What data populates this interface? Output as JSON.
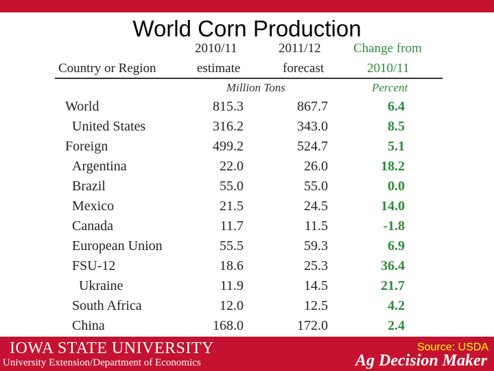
{
  "title": "World Corn Production",
  "table": {
    "header": {
      "country": "Country or Region",
      "col1_line1": "2010/11",
      "col1_line2": "estimate",
      "col2_line1": "2011/12",
      "col2_line2": "forecast",
      "col3_line1": "Change from",
      "col3_line2": "2010/11"
    },
    "units": {
      "tons": "Million Tons",
      "percent": "Percent"
    },
    "rows": [
      {
        "name": "World",
        "v1": "815.3",
        "v2": "867.7",
        "pct": "6.4"
      },
      {
        "name": "United States",
        "v1": "316.2",
        "v2": "343.0",
        "pct": "8.5"
      },
      {
        "name": "Foreign",
        "v1": "499.2",
        "v2": "524.7",
        "pct": "5.1"
      },
      {
        "name": "Argentina",
        "v1": "22.0",
        "v2": "26.0",
        "pct": "18.2"
      },
      {
        "name": "Brazil",
        "v1": "55.0",
        "v2": "55.0",
        "pct": "0.0"
      },
      {
        "name": "Mexico",
        "v1": "21.5",
        "v2": "24.5",
        "pct": "14.0"
      },
      {
        "name": "Canada",
        "v1": "11.7",
        "v2": "11.5",
        "pct": "-1.8"
      },
      {
        "name": "European Union",
        "v1": "55.5",
        "v2": "59.3",
        "pct": "6.9"
      },
      {
        "name": "FSU-12",
        "v1": "18.6",
        "v2": "25.3",
        "pct": "36.4"
      },
      {
        "name": "Ukraine",
        "v1": "11.9",
        "v2": "14.5",
        "pct": "21.7"
      },
      {
        "name": "South Africa",
        "v1": "12.0",
        "v2": "12.5",
        "pct": "4.2"
      },
      {
        "name": "China",
        "v1": "168.0",
        "v2": "172.0",
        "pct": "2.4"
      }
    ]
  },
  "footer": {
    "university": "IOWA STATE UNIVERSITY",
    "department": "University Extension/Department of Economics",
    "source": "Source: USDA",
    "brand": "Ag Decision Maker"
  },
  "colors": {
    "brand_red": "#c41230",
    "percent_green": "#2e8b3a",
    "source_yellow": "#ffff00"
  }
}
